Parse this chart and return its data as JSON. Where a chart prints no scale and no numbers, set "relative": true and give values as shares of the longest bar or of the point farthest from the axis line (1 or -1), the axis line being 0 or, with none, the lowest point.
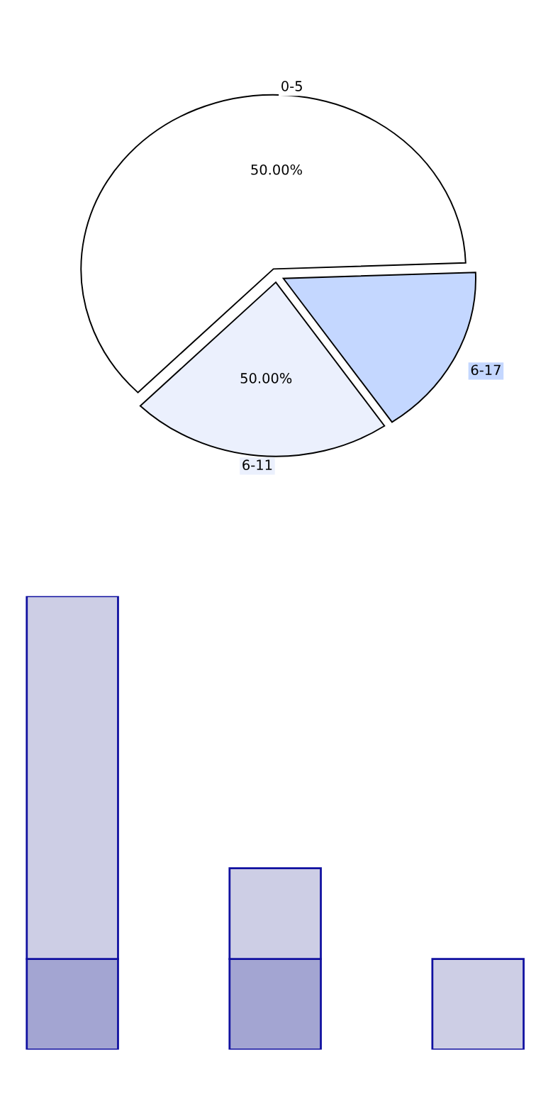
{
  "chart_data": [
    {
      "type": "pie",
      "categories": [
        "0-5",
        "6-11",
        "6-17"
      ],
      "values": [
        62,
        22,
        16
      ],
      "colors": [
        "#ffffff",
        "#ebf0fd",
        "#c4d7ff"
      ],
      "annotations": [
        {
          "text": "50.00%",
          "x": "0-5"
        },
        {
          "text": "50.00%",
          "x": "6-11"
        }
      ]
    },
    {
      "type": "bar",
      "stacked": true,
      "relative": true,
      "categories": [
        null,
        null,
        null
      ],
      "series": [
        {
          "color": "#a3a5d2",
          "values": [
            0.2,
            0.2,
            null
          ]
        },
        {
          "color": "#cdcee5",
          "values": [
            0.8,
            0.2,
            0.2
          ]
        }
      ]
    }
  ]
}
